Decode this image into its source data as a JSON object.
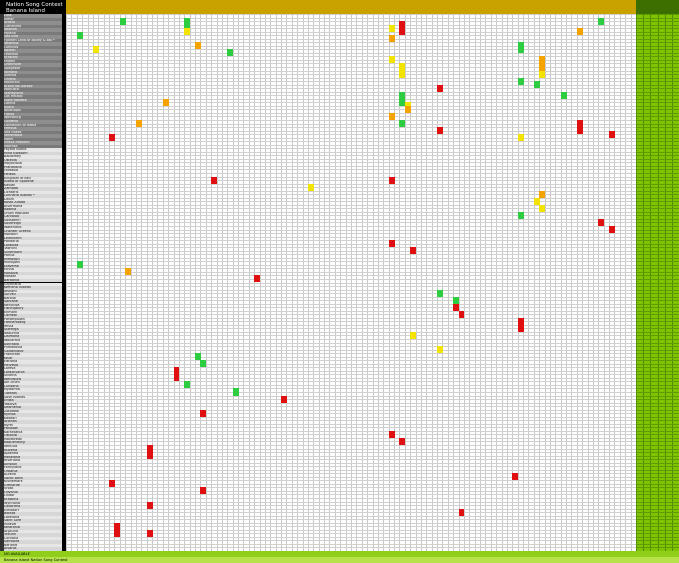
{
  "sheet": {
    "title_line1": "Nation Song Contest",
    "title_line2": "Banana Island"
  },
  "colors": {
    "green": "#2ecc40",
    "yellow": "#f2e400",
    "orange": "#f4a300",
    "red": "#e01010",
    "header_gold": "#c9a200",
    "summary_green": "#7fc400"
  },
  "rows": [
    "Lusk",
    "Elmar",
    "Ardeia",
    "Luthanrea",
    "Noorvel",
    "Paraná",
    "Sea Bird",
    "Fjorden Land of Bailey & Bol *",
    "Velaraus",
    "Luminos",
    "Kalden",
    "Leanosa",
    "Krasnov",
    "Faipan",
    "Dranmore",
    "Spagasse",
    "Norland",
    "Vilenka",
    "Ohrma",
    "Mountain",
    "Bravo Na Gorazv",
    "Morjustic",
    "Stankyland",
    "Los Helado",
    "Elore Rakette",
    "Lahnia",
    "Kvard",
    "Nicanopol",
    "Flonia",
    "Wolfsburg",
    "Goldena",
    "Domainon of Rabia",
    "Ferrous",
    "Sea Rakes",
    "Vetterwold",
    "Mons",
    "Enava Republic",
    "Mafrosa",
    "Fayoro Island",
    "Mind Blossom",
    "Baldomey",
    "Ostevia",
    "Mayortalia",
    "Pranthoria",
    "Fantasia",
    "Heleos",
    "Kingdom of Bell",
    "Island of Spozelle",
    "Kasian",
    "Zamada",
    "Lichtaris",
    "Lurinaria Islands *",
    "Dilorn",
    "Kosto Alfada",
    "Alvermana",
    "Isbania",
    "Union Republic",
    "Carvaloo",
    "Sossberin",
    "Sovereign",
    "Waterland",
    "Chanter Greens",
    "Morobin",
    "Lelenheim",
    "Pandoria",
    "Lorabiza",
    "Tasmini",
    "Silvertown",
    "Parnia",
    "Mimboon",
    "Muroglan",
    "Etaverse",
    "Hirvla",
    "Mosalva",
    "Mosten",
    "Barbania",
    "Grynnaria",
    "Kemeria Islands",
    "Ibsharti",
    "Surveli",
    "Barolia",
    "Santane",
    "Nerundia",
    "Fishingbury",
    "Enmark",
    "Ozmeal",
    "Parsenpolan",
    "Fremersberg",
    "Imvia",
    "Starerga",
    "Nasurnia",
    "Dalmona",
    "Wollarant",
    "Ashrabia",
    "Plimakovia",
    "Goldenland",
    "Frankrath",
    "Kelar",
    "Edtrona",
    "Helvetia",
    "Loreva",
    "Loraxilvania",
    "Silveria",
    "Wendslow",
    "Alfi Ichen",
    "Lundana",
    "Mydorma",
    "Tiwaros",
    "Sosh Islands",
    "Erdan",
    "Yaslova",
    "Sedmenia",
    "Zotodeal",
    "Rymoa",
    "Kadasri",
    "Atlantis",
    "Nyrel",
    "Pasdlaw",
    "Karantania",
    "Ostavia",
    "Marebreak",
    "Roquenburg",
    "Ventura",
    "Nuveria",
    "Aptenea",
    "Meseland",
    "Riverlana",
    "Ainskun",
    "Fannyland",
    "Orbania",
    "Aurelia",
    "Sankt Bells",
    "Kronemark",
    "Grenarde",
    "Vrosk",
    "Olivarial",
    "Lindor",
    "Kratonia",
    "Wynnoria",
    "Goldcrest",
    "Elmsdorf",
    "Beleza",
    "Lakeland",
    "Saint Lore",
    "Miravel",
    "Kestrania",
    "Anjouria",
    "Tellurin",
    "Corvana",
    "Samdora",
    "Berland",
    "Alvania"
  ],
  "highlights": [
    {
      "r": 1,
      "c": 10,
      "s": "green"
    },
    {
      "r": 1,
      "c": 22,
      "s": "green"
    },
    {
      "r": 2,
      "c": 22,
      "s": "green"
    },
    {
      "r": 4,
      "c": 22,
      "s": "yellow"
    },
    {
      "r": 5,
      "c": 2,
      "s": "green"
    },
    {
      "r": 8,
      "c": 24,
      "s": "orange"
    },
    {
      "r": 9,
      "c": 5,
      "s": "yellow"
    },
    {
      "r": 10,
      "c": 30,
      "s": "green"
    },
    {
      "r": 3,
      "c": 60,
      "s": "yellow"
    },
    {
      "r": 2,
      "c": 62,
      "s": "red"
    },
    {
      "r": 4,
      "c": 62,
      "s": "red"
    },
    {
      "r": 4,
      "c": 95,
      "s": "orange"
    },
    {
      "r": 8,
      "c": 84,
      "s": "green"
    },
    {
      "r": 9,
      "c": 84,
      "s": "green"
    },
    {
      "r": 1,
      "c": 99,
      "s": "green"
    },
    {
      "r": 6,
      "c": 60,
      "s": "orange"
    },
    {
      "r": 12,
      "c": 60,
      "s": "yellow"
    },
    {
      "r": 14,
      "c": 62,
      "s": "yellow"
    },
    {
      "r": 16,
      "c": 62,
      "s": "yellow"
    },
    {
      "r": 20,
      "c": 69,
      "s": "red"
    },
    {
      "r": 22,
      "c": 62,
      "s": "green"
    },
    {
      "r": 24,
      "c": 62,
      "s": "green"
    },
    {
      "r": 25,
      "c": 63,
      "s": "yellow"
    },
    {
      "r": 26,
      "c": 63,
      "s": "orange"
    },
    {
      "r": 28,
      "c": 60,
      "s": "orange"
    },
    {
      "r": 30,
      "c": 62,
      "s": "green"
    },
    {
      "r": 32,
      "c": 69,
      "s": "red"
    },
    {
      "r": 34,
      "c": 84,
      "s": "yellow"
    },
    {
      "r": 30,
      "c": 95,
      "s": "red"
    },
    {
      "r": 32,
      "c": 95,
      "s": "red"
    },
    {
      "r": 33,
      "c": 101,
      "s": "red"
    },
    {
      "r": 18,
      "c": 84,
      "s": "green"
    },
    {
      "r": 19,
      "c": 87,
      "s": "green"
    },
    {
      "r": 12,
      "c": 88,
      "s": "orange"
    },
    {
      "r": 14,
      "c": 88,
      "s": "orange"
    },
    {
      "r": 16,
      "c": 88,
      "s": "yellow"
    },
    {
      "r": 22,
      "c": 92,
      "s": "green"
    },
    {
      "r": 24,
      "c": 18,
      "s": "orange"
    },
    {
      "r": 30,
      "c": 13,
      "s": "orange"
    },
    {
      "r": 34,
      "c": 8,
      "s": "red"
    },
    {
      "r": 46,
      "c": 27,
      "s": "red"
    },
    {
      "r": 46,
      "c": 60,
      "s": "red"
    },
    {
      "r": 48,
      "c": 45,
      "s": "yellow"
    },
    {
      "r": 50,
      "c": 88,
      "s": "orange"
    },
    {
      "r": 52,
      "c": 87,
      "s": "yellow"
    },
    {
      "r": 54,
      "c": 88,
      "s": "yellow"
    },
    {
      "r": 56,
      "c": 84,
      "s": "green"
    },
    {
      "r": 58,
      "c": 99,
      "s": "red"
    },
    {
      "r": 60,
      "c": 101,
      "s": "red"
    },
    {
      "r": 64,
      "c": 60,
      "s": "red"
    },
    {
      "r": 66,
      "c": 64,
      "s": "red"
    },
    {
      "r": 70,
      "c": 2,
      "s": "green"
    },
    {
      "r": 72,
      "c": 11,
      "s": "orange"
    },
    {
      "r": 74,
      "c": 35,
      "s": "red"
    },
    {
      "r": 78,
      "c": 69,
      "s": "green"
    },
    {
      "r": 80,
      "c": 72,
      "s": "green"
    },
    {
      "r": 82,
      "c": 72,
      "s": "red"
    },
    {
      "r": 84,
      "c": 73,
      "s": "red"
    },
    {
      "r": 86,
      "c": 84,
      "s": "red"
    },
    {
      "r": 88,
      "c": 84,
      "s": "red"
    },
    {
      "r": 90,
      "c": 64,
      "s": "yellow"
    },
    {
      "r": 94,
      "c": 69,
      "s": "yellow"
    },
    {
      "r": 96,
      "c": 24,
      "s": "green"
    },
    {
      "r": 98,
      "c": 25,
      "s": "green"
    },
    {
      "r": 100,
      "c": 20,
      "s": "red"
    },
    {
      "r": 102,
      "c": 20,
      "s": "red"
    },
    {
      "r": 104,
      "c": 22,
      "s": "green"
    },
    {
      "r": 106,
      "c": 31,
      "s": "green"
    },
    {
      "r": 108,
      "c": 40,
      "s": "red"
    },
    {
      "r": 112,
      "c": 25,
      "s": "red"
    },
    {
      "r": 118,
      "c": 60,
      "s": "red"
    },
    {
      "r": 120,
      "c": 62,
      "s": "red"
    },
    {
      "r": 122,
      "c": 15,
      "s": "red"
    },
    {
      "r": 124,
      "c": 15,
      "s": "red"
    },
    {
      "r": 130,
      "c": 83,
      "s": "red"
    },
    {
      "r": 132,
      "c": 8,
      "s": "red"
    },
    {
      "r": 134,
      "c": 25,
      "s": "red"
    },
    {
      "r": 138,
      "c": 15,
      "s": "red"
    },
    {
      "r": 140,
      "c": 73,
      "s": "red"
    },
    {
      "r": 144,
      "c": 9,
      "s": "red"
    },
    {
      "r": 146,
      "c": 9,
      "s": "red"
    },
    {
      "r": 146,
      "c": 15,
      "s": "red"
    }
  ],
  "footer": {
    "line1": "NO AVAILABLE",
    "line2": "Banana Island  Nation Song Contest"
  }
}
